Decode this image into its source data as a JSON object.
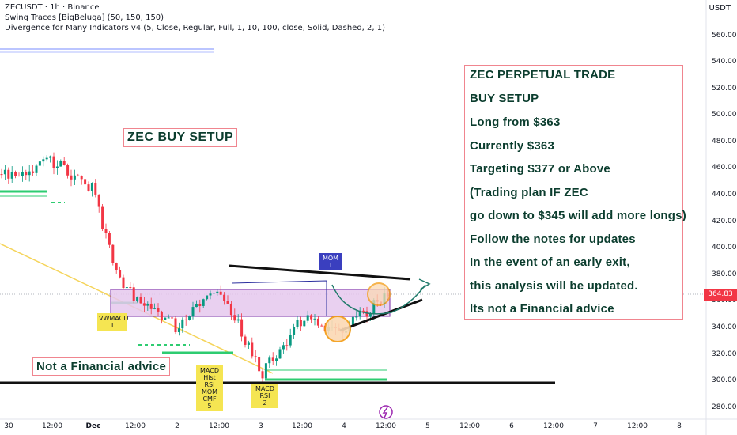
{
  "header": {
    "symbol_line": "ZECUSDT · 1h · Binance",
    "indicator1": "Swing Traces [BigBeluga] (50, 150, 150)",
    "indicator2": "Divergence for Many Indicators v4 (5, Close, Regular, Full, 1, 10, 100, close, Solid, Dashed, 2, 1)",
    "currency": "USDT"
  },
  "price_axis": {
    "ticks": [
      "560.00",
      "540.00",
      "520.00",
      "500.00",
      "480.00",
      "460.00",
      "440.00",
      "420.00",
      "400.00",
      "380.00",
      "360.00",
      "340.00",
      "320.00",
      "300.00",
      "280.00"
    ],
    "current_price": "364.83"
  },
  "time_axis": {
    "ticks": [
      "30",
      "12:00",
      "Dec",
      "12:00",
      "2",
      "12:00",
      "3",
      "12:00",
      "4",
      "12:00",
      "5",
      "12:00",
      "6",
      "12:00",
      "7",
      "12:00",
      "8"
    ]
  },
  "annotations": {
    "setup_title": "ZEC BUY SETUP",
    "not_financial": "Not a Financial advice",
    "notes": [
      "ZEC PERPETUAL TRADE",
      "BUY SETUP",
      "Long from $363",
      "Currently $363",
      "Targeting $377 or Above",
      "(Trading plan IF ZEC",
      "go down to $345 will add more longs)",
      "Follow the notes for updates",
      "In the event of an early exit,",
      "this analysis will be updated.",
      "Its not a Financial advice"
    ]
  },
  "divergence_labels": {
    "vwmacd": "VWMACD\n1",
    "macd_group": "MACD\nHist\nRSI\nMOM\nCMF\n5",
    "macd_rsi": "MACD\nRSI\n2",
    "mom": "MOM\n1"
  },
  "colors": {
    "up": "#089981",
    "down": "#f23645",
    "zone": "#e6c8ee",
    "zone_border": "#7b2fa8",
    "note_border": "#f0858f",
    "text_green": "#0b3d2e",
    "arrow": "#1f7a6a"
  },
  "chart_data": {
    "type": "candlestick",
    "symbol": "ZECUSDT",
    "interval": "1h",
    "exchange": "Binance",
    "y_range": [
      272,
      568
    ],
    "close_path": [
      {
        "t": "30",
        "price": 455
      },
      {
        "t": "30 12:00",
        "price": 465
      },
      {
        "t": "Dec",
        "price": 443
      },
      {
        "t": "Dec 06:00",
        "price": 385
      },
      {
        "t": "Dec 12:00",
        "price": 360
      },
      {
        "t": "2",
        "price": 340
      },
      {
        "t": "2 12:00",
        "price": 372
      },
      {
        "t": "3",
        "price": 304
      },
      {
        "t": "3 12:00",
        "price": 345
      },
      {
        "t": "4",
        "price": 338
      },
      {
        "t": "4 12:00",
        "price": 364.83
      }
    ],
    "demand_zone": [
      349,
      370
    ],
    "trendline_resistance": [
      375,
      383
    ],
    "trendline_support": [
      340,
      368
    ],
    "support_line": 299,
    "target_arrow_price": 377
  }
}
